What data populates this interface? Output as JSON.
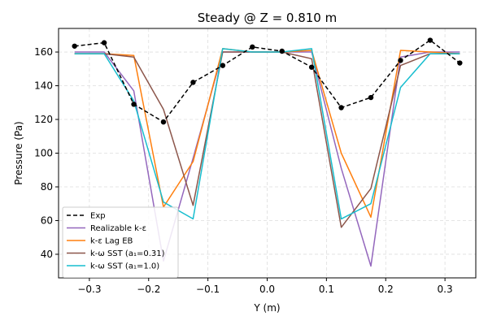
{
  "chart_data": {
    "type": "line",
    "title": "Steady @ Z = 0.810 m",
    "xlabel": "Y (m)",
    "ylabel": "Pressure (Pa)",
    "xlim": [
      -0.352,
      0.352
    ],
    "ylim": [
      26,
      174
    ],
    "xticks": [
      -0.3,
      -0.2,
      -0.1,
      0.0,
      0.1,
      0.2,
      0.3
    ],
    "xtick_labels": [
      "−0.3",
      "−0.2",
      "−0.1",
      "0.0",
      "0.1",
      "0.2",
      "0.3"
    ],
    "yticks": [
      40,
      60,
      80,
      100,
      120,
      140,
      160
    ],
    "ytick_labels": [
      "40",
      "60",
      "80",
      "100",
      "120",
      "140",
      "160"
    ],
    "grid": true,
    "legend_position": "lower-left",
    "series": [
      {
        "name": "Exp",
        "color": "#000000",
        "style": "dashed",
        "marker": "circle",
        "x": [
          -0.325,
          -0.275,
          -0.225,
          -0.175,
          -0.125,
          -0.075,
          -0.025,
          0.025,
          0.075,
          0.125,
          0.175,
          0.225,
          0.275,
          0.325
        ],
        "y": [
          163.5,
          165.5,
          129,
          118.5,
          142,
          152,
          163,
          160.5,
          151,
          127,
          133,
          155,
          167,
          153.5
        ]
      },
      {
        "name": "Realizable k-ε",
        "color": "#9467bd",
        "style": "solid",
        "marker": "none",
        "x": [
          -0.325,
          -0.275,
          -0.225,
          -0.175,
          -0.125,
          -0.075,
          -0.025,
          0.025,
          0.075,
          0.125,
          0.175,
          0.225,
          0.275,
          0.325
        ],
        "y": [
          160,
          160,
          137,
          36,
          97,
          160,
          160,
          160,
          160,
          91,
          33,
          157,
          160,
          160
        ]
      },
      {
        "name": "k-ε Lag EB",
        "color": "#ff7f0e",
        "style": "solid",
        "marker": "none",
        "x": [
          -0.325,
          -0.275,
          -0.225,
          -0.175,
          -0.125,
          -0.075,
          -0.025,
          0.025,
          0.075,
          0.125,
          0.175,
          0.225,
          0.275,
          0.325
        ],
        "y": [
          159,
          159,
          158,
          68,
          95,
          162,
          160,
          160,
          161,
          100,
          62,
          161,
          160,
          159
        ]
      },
      {
        "name": "k-ω SST (a₁=0.31)",
        "color": "#8c564b",
        "style": "solid",
        "marker": "none",
        "x": [
          -0.325,
          -0.275,
          -0.225,
          -0.175,
          -0.125,
          -0.075,
          -0.025,
          0.025,
          0.075,
          0.125,
          0.175,
          0.225,
          0.275,
          0.325
        ],
        "y": [
          159,
          159,
          157,
          126,
          69,
          160,
          160,
          160,
          156,
          56,
          79,
          152,
          159,
          159
        ]
      },
      {
        "name": "k-ω SST (a₁=1.0)",
        "color": "#17becf",
        "style": "solid",
        "marker": "none",
        "x": [
          -0.325,
          -0.275,
          -0.225,
          -0.175,
          -0.125,
          -0.075,
          -0.025,
          0.025,
          0.075,
          0.125,
          0.175,
          0.225,
          0.275,
          0.325
        ],
        "y": [
          159,
          159,
          131,
          71,
          61,
          162,
          160,
          160,
          162,
          61,
          70,
          139,
          159,
          159
        ]
      }
    ]
  }
}
